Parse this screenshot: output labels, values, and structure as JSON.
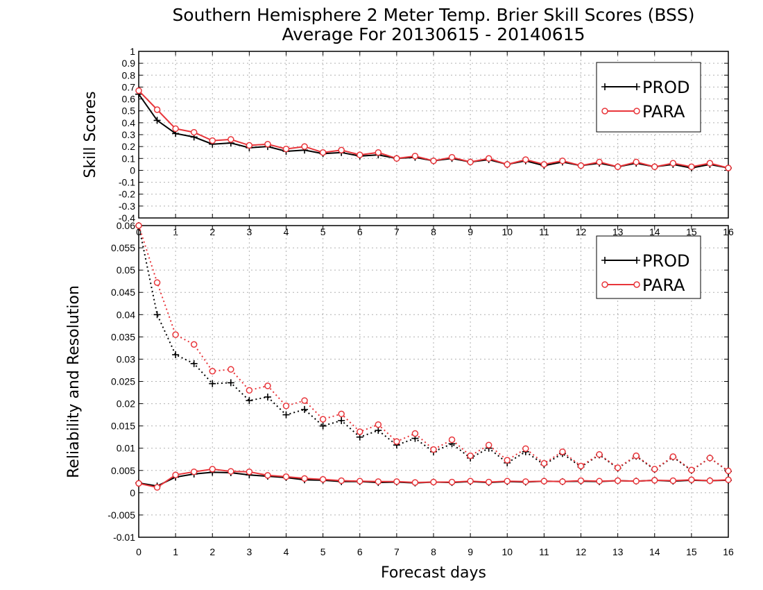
{
  "title": {
    "line1": "Southern Hemisphere 2 Meter Temp. Brier Skill Scores (BSS)",
    "line2": "Average For 20130615 - 20140615"
  },
  "colors": {
    "prod": "#000000",
    "para": "#e8353a",
    "grid": "#b0b0b0"
  },
  "chart_data": [
    {
      "type": "line",
      "ylabel": "Skill Scores",
      "xlabel": "",
      "xlim": [
        0,
        16
      ],
      "ylim": [
        -0.4,
        1
      ],
      "y_ticks": [
        "-0.4",
        "-0.3",
        "-0.2",
        "-0.1",
        "0",
        "0.1",
        "0.2",
        "0.3",
        "0.4",
        "0.5",
        "0.6",
        "0.7",
        "0.8",
        "0.9",
        "1"
      ],
      "x_ticks": [
        "0",
        "1",
        "2",
        "3",
        "4",
        "5",
        "6",
        "7",
        "8",
        "9",
        "10",
        "11",
        "12",
        "13",
        "14",
        "15",
        "16"
      ],
      "grid": true,
      "legend_position": "top-right",
      "x": [
        0,
        0.5,
        1,
        1.5,
        2,
        2.5,
        3,
        3.5,
        4,
        4.5,
        5,
        5.5,
        6,
        6.5,
        7,
        7.5,
        8,
        8.5,
        9,
        9.5,
        10,
        10.5,
        11,
        11.5,
        12,
        12.5,
        13,
        13.5,
        14,
        14.5,
        15,
        15.5,
        16
      ],
      "series": [
        {
          "name": "PROD",
          "style": "solid",
          "marker": "plus",
          "values": [
            0.64,
            0.42,
            0.31,
            0.28,
            0.22,
            0.23,
            0.19,
            0.2,
            0.16,
            0.17,
            0.14,
            0.15,
            0.12,
            0.13,
            0.1,
            0.11,
            0.08,
            0.1,
            0.07,
            0.09,
            0.05,
            0.08,
            0.04,
            0.07,
            0.04,
            0.06,
            0.03,
            0.06,
            0.03,
            0.05,
            0.02,
            0.05,
            0.02
          ]
        },
        {
          "name": "PARA",
          "style": "solid",
          "marker": "circle",
          "values": [
            0.67,
            0.51,
            0.35,
            0.32,
            0.25,
            0.26,
            0.21,
            0.22,
            0.18,
            0.2,
            0.15,
            0.17,
            0.13,
            0.15,
            0.1,
            0.12,
            0.08,
            0.11,
            0.07,
            0.1,
            0.05,
            0.09,
            0.05,
            0.08,
            0.04,
            0.07,
            0.03,
            0.07,
            0.03,
            0.06,
            0.03,
            0.06,
            0.02
          ]
        }
      ]
    },
    {
      "type": "line",
      "ylabel": "Reliability and Resolution",
      "xlabel": "Forecast days",
      "xlim": [
        0,
        16
      ],
      "ylim": [
        -0.01,
        0.06
      ],
      "y_ticks": [
        "-0.01",
        "-0.005",
        "0",
        "0.005",
        "0.01",
        "0.015",
        "0.02",
        "0.025",
        "0.03",
        "0.035",
        "0.04",
        "0.045",
        "0.05",
        "0.055",
        "0.06"
      ],
      "x_ticks": [
        "0",
        "1",
        "2",
        "3",
        "4",
        "5",
        "6",
        "7",
        "8",
        "9",
        "10",
        "11",
        "12",
        "13",
        "14",
        "15",
        "16"
      ],
      "grid": true,
      "legend_position": "top-right",
      "x": [
        0,
        0.5,
        1,
        1.5,
        2,
        2.5,
        3,
        3.5,
        4,
        4.5,
        5,
        5.5,
        6,
        6.5,
        7,
        7.5,
        8,
        8.5,
        9,
        9.5,
        10,
        10.5,
        11,
        11.5,
        12,
        12.5,
        13,
        13.5,
        14,
        14.5,
        15,
        15.5,
        16
      ],
      "series": [
        {
          "name": "PROD",
          "style": "dotted",
          "marker": "plus",
          "values": [
            0.06,
            0.04,
            0.031,
            0.029,
            0.0245,
            0.0247,
            0.0207,
            0.0215,
            0.0175,
            0.0187,
            0.015,
            0.0162,
            0.0125,
            0.014,
            0.0107,
            0.0122,
            0.0092,
            0.011,
            0.0078,
            0.01,
            0.0067,
            0.0092,
            0.0063,
            0.0088,
            0.0058,
            0.0085,
            0.0055,
            0.0082,
            0.0052,
            0.008,
            0.005,
            0.0078,
            0.0048
          ]
        },
        {
          "name": "PARA",
          "style": "dotted",
          "marker": "circle",
          "values": [
            0.06,
            0.0472,
            0.0355,
            0.0333,
            0.0273,
            0.0277,
            0.023,
            0.024,
            0.0195,
            0.0207,
            0.0165,
            0.0177,
            0.0137,
            0.0153,
            0.0115,
            0.0133,
            0.0097,
            0.0119,
            0.0083,
            0.0107,
            0.0073,
            0.0099,
            0.0066,
            0.0092,
            0.006,
            0.0086,
            0.0056,
            0.0083,
            0.0053,
            0.0081,
            0.0051,
            0.0078,
            0.0049
          ]
        },
        {
          "name": "PROD",
          "style": "solid",
          "marker": "plus",
          "values": [
            0.0022,
            0.0015,
            0.0035,
            0.0042,
            0.0046,
            0.0045,
            0.004,
            0.0037,
            0.0034,
            0.0029,
            0.0028,
            0.0025,
            0.0025,
            0.0023,
            0.0024,
            0.0022,
            0.0024,
            0.0023,
            0.0025,
            0.0023,
            0.0025,
            0.0024,
            0.0026,
            0.0025,
            0.0026,
            0.0025,
            0.0027,
            0.0026,
            0.0028,
            0.0026,
            0.0028,
            0.0027,
            0.0028
          ]
        },
        {
          "name": "PARA",
          "style": "solid",
          "marker": "circle",
          "values": [
            0.0021,
            0.0012,
            0.004,
            0.0047,
            0.0053,
            0.0048,
            0.0047,
            0.0039,
            0.0036,
            0.0032,
            0.003,
            0.0027,
            0.0026,
            0.0025,
            0.0025,
            0.0023,
            0.0024,
            0.0024,
            0.0026,
            0.0024,
            0.0026,
            0.0025,
            0.0026,
            0.0025,
            0.0027,
            0.0026,
            0.0027,
            0.0026,
            0.0028,
            0.0027,
            0.0029,
            0.0027,
            0.0029
          ]
        }
      ]
    }
  ]
}
